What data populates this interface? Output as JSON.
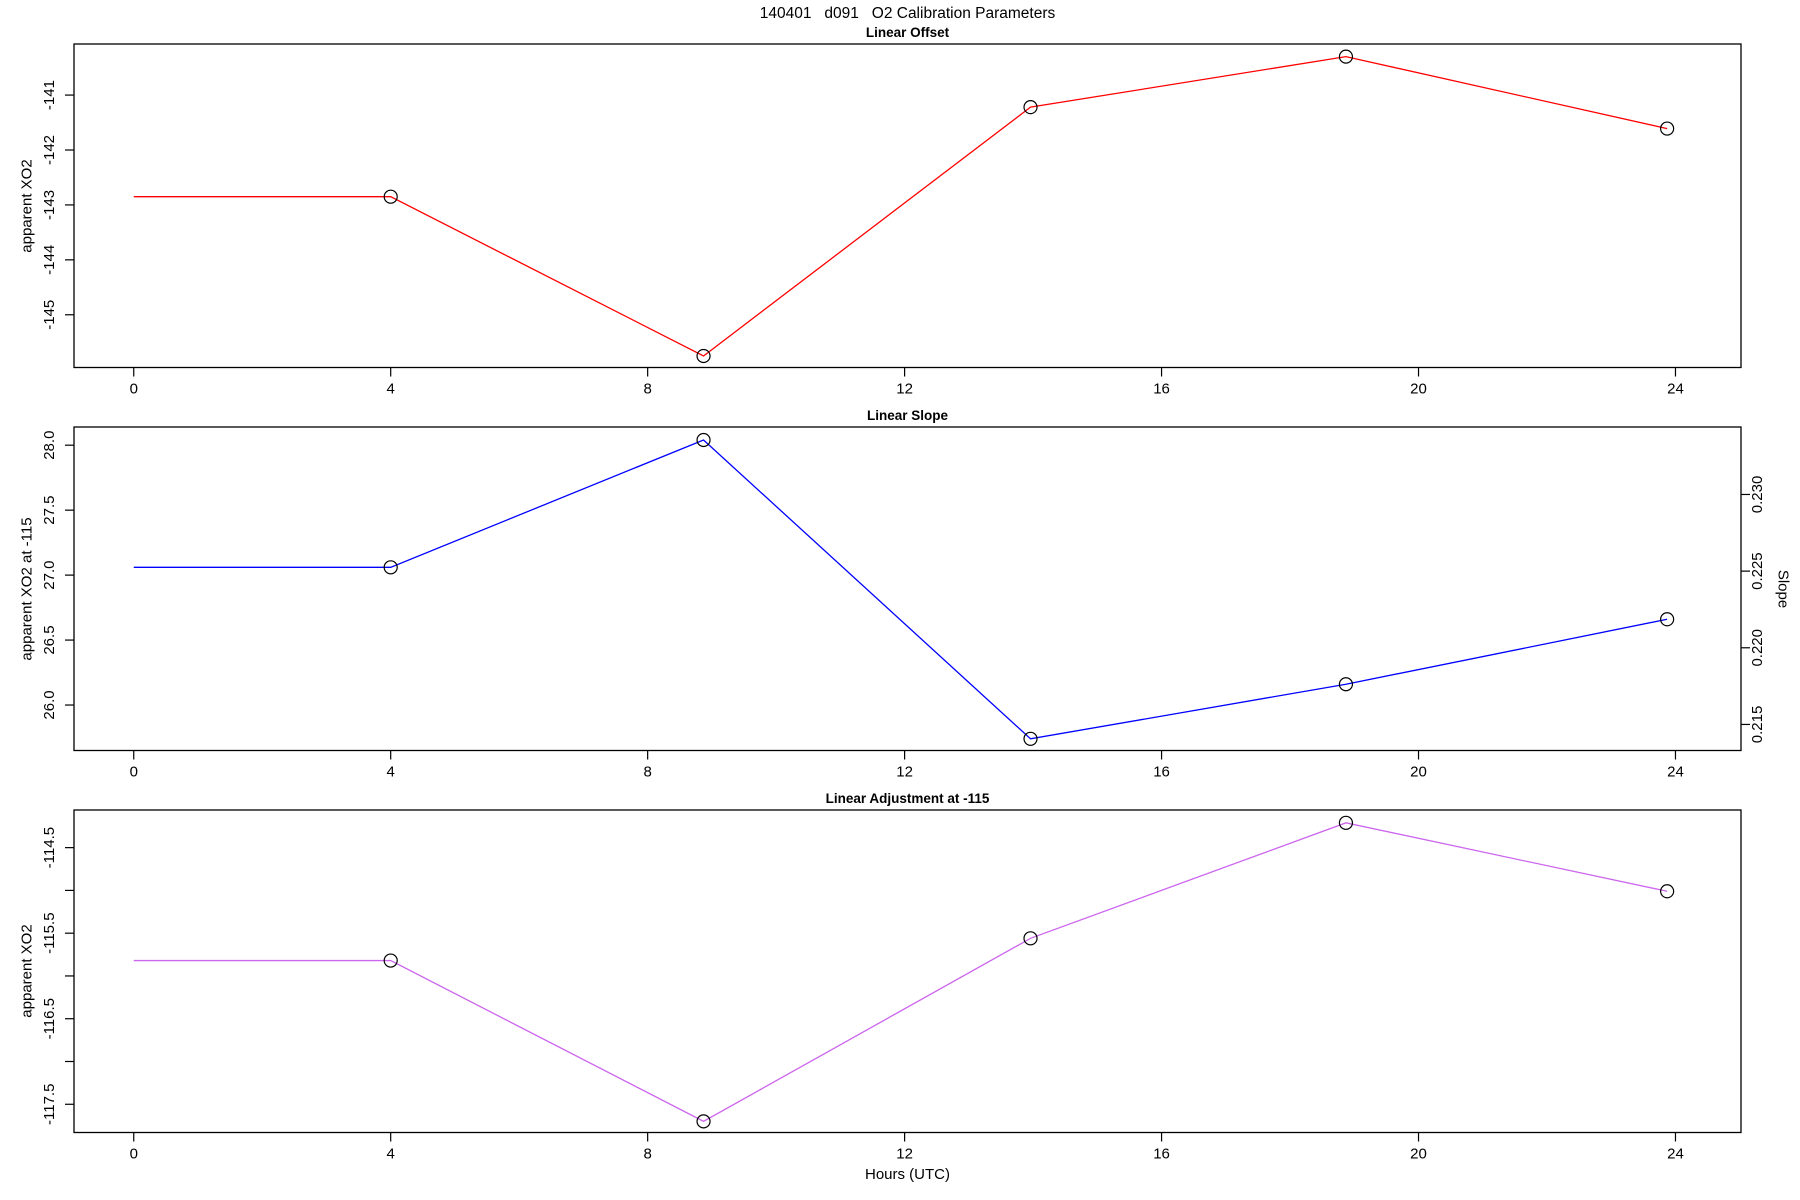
{
  "figure": {
    "title": "140401   d091   O2 Calibration Parameters",
    "xlabel": "Hours (UTC)",
    "background_color": "#ffffff",
    "axis_color": "#000000",
    "marker": "open-circle",
    "marker_color": "#000000"
  },
  "chart_data": [
    {
      "type": "line",
      "title": "Linear Offset",
      "ylabel": "apparent XO2",
      "line_color": "#ff0000",
      "x": [
        0,
        4.0,
        8.87,
        13.96,
        18.87,
        23.87
      ],
      "y": [
        -142.85,
        -142.85,
        -145.75,
        -141.22,
        -140.3,
        -141.61
      ],
      "marker_start_index": 1,
      "xlim": [
        -0.93,
        25.02
      ],
      "ylim": [
        -145.96,
        -140.07
      ],
      "xticks": [
        0,
        4,
        8,
        12,
        16,
        20,
        24
      ],
      "xtick_labels": [
        "0",
        "4",
        "8",
        "12",
        "16",
        "20",
        "24"
      ],
      "yticks": [
        -145,
        -144,
        -143,
        -142,
        -141
      ],
      "ytick_labels": [
        "-145",
        "-144",
        "-143",
        "-142",
        "-141"
      ],
      "grid": false,
      "legend": "none"
    },
    {
      "type": "line",
      "title": "Linear Slope",
      "ylabel": "apparent XO2 at -115",
      "ylabel_right": "Slope",
      "line_color": "#0000ff",
      "x": [
        0,
        4.0,
        8.87,
        13.96,
        18.87,
        23.87
      ],
      "y": [
        27.06,
        27.06,
        28.04,
        25.74,
        26.16,
        26.66
      ],
      "y_right_slope": [
        0.2253,
        0.2253,
        0.2336,
        0.2141,
        0.2177,
        0.2219
      ],
      "marker_start_index": 1,
      "xlim": [
        -0.93,
        25.02
      ],
      "ylim": [
        25.65,
        28.14
      ],
      "xticks": [
        0,
        4,
        8,
        12,
        16,
        20,
        24
      ],
      "xtick_labels": [
        "0",
        "4",
        "8",
        "12",
        "16",
        "20",
        "24"
      ],
      "yticks": [
        26.0,
        26.5,
        27.0,
        27.5,
        28.0
      ],
      "ytick_labels": [
        "26.0",
        "26.5",
        "27.0",
        "27.5",
        "28.0"
      ],
      "right_ylim": [
        0.2133,
        0.2344
      ],
      "right_yticks": [
        0.215,
        0.22,
        0.225,
        0.23
      ],
      "right_ytick_labels": [
        "0.215",
        "0.220",
        "0.225",
        "0.230"
      ],
      "grid": false,
      "legend": "none"
    },
    {
      "type": "line",
      "title": "Linear Adjustment at -115",
      "ylabel": "apparent XO2",
      "line_color": "#cc66ee",
      "x": [
        0,
        4.0,
        8.87,
        13.96,
        18.87,
        23.87
      ],
      "y": [
        -115.82,
        -115.82,
        -117.7,
        -115.56,
        -114.21,
        -115.01
      ],
      "marker_start_index": 1,
      "xlim": [
        -0.93,
        25.02
      ],
      "ylim": [
        -117.83,
        -114.06
      ],
      "xticks": [
        0,
        4,
        8,
        12,
        16,
        20,
        24
      ],
      "xtick_labels": [
        "0",
        "4",
        "8",
        "12",
        "16",
        "20",
        "24"
      ],
      "yticks": [
        -117.5,
        -117.0,
        -116.5,
        -116.0,
        -115.5,
        -115.0,
        -114.5
      ],
      "ytick_labels": [
        "-117.5",
        "",
        "-116.5",
        "",
        "-115.5",
        "",
        "-114.5"
      ],
      "grid": false,
      "legend": "none"
    }
  ]
}
